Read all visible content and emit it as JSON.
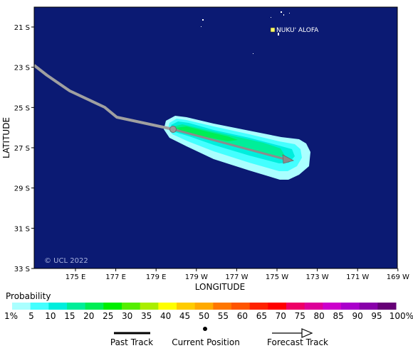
{
  "map": {
    "background_color": "#0b1a73",
    "lon_ticks": [
      "175 E",
      "177 E",
      "179 E",
      "179 W",
      "177 W",
      "175 W",
      "173 W",
      "171 W",
      "169 W"
    ],
    "lat_ticks": [
      "21 S",
      "23 S",
      "25 S",
      "27 S",
      "29 S",
      "31 S",
      "33 S"
    ],
    "xlabel": "LONGITUDE",
    "ylabel": "LATITUDE",
    "place_label": "NUKU' ALOFA",
    "copyright": "© UCL 2022",
    "past_track_color": "#a0a0a0",
    "forecast_track_color": "#8c8c8c"
  },
  "legend": {
    "title": "Probability",
    "labels": [
      "1%",
      "5",
      "10",
      "15",
      "20",
      "25",
      "30",
      "35",
      "40",
      "45",
      "50",
      "55",
      "60",
      "65",
      "70",
      "75",
      "80",
      "85",
      "90",
      "95",
      "100%"
    ],
    "colors": [
      "#aaffff",
      "#44ffff",
      "#00eedd",
      "#00ee99",
      "#00ee55",
      "#00ee00",
      "#55ee00",
      "#aaee00",
      "#ffff00",
      "#ffcc00",
      "#ffaa00",
      "#ff7700",
      "#ff5500",
      "#ff2200",
      "#ff0000",
      "#ee0066",
      "#dd0099",
      "#cc00cc",
      "#aa00cc",
      "#8800aa",
      "#660077"
    ]
  },
  "key": {
    "past_track": "Past Track",
    "current_position": "Current Position",
    "forecast_track": "Forecast Track"
  }
}
